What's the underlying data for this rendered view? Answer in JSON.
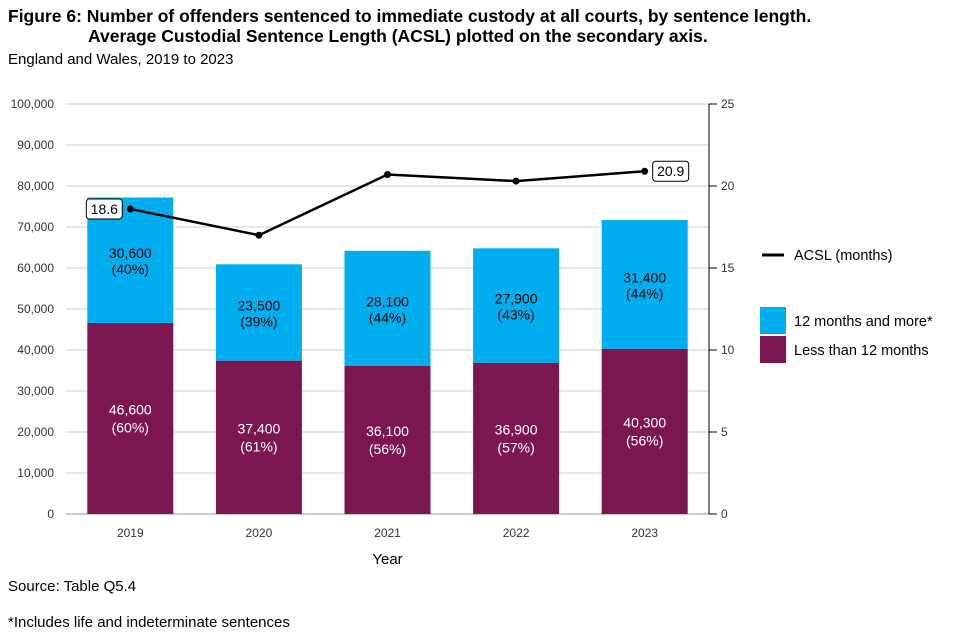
{
  "title_line1": "Figure 6: Number of offenders sentenced to immediate custody at all courts, by sentence length.",
  "title_line2": "Average Custodial Sentence Length (ACSL) plotted on the secondary axis.",
  "subtitle": "England and Wales, 2019 to 2023",
  "source": "Source: Table Q5.4",
  "footnote": "*Includes life and indeterminate sentences",
  "chart_data": {
    "type": "bar",
    "stacked": true,
    "categories": [
      "2019",
      "2020",
      "2021",
      "2022",
      "2023"
    ],
    "xlabel": "Year",
    "ylabel": "",
    "ylim": [
      0,
      100000
    ],
    "y_ticks": [
      "0",
      "10,000",
      "20,000",
      "30,000",
      "40,000",
      "50,000",
      "60,000",
      "70,000",
      "80,000",
      "90,000",
      "100,000"
    ],
    "y2lim": [
      0,
      25
    ],
    "y2_ticks": [
      "0",
      "5",
      "10",
      "15",
      "20",
      "25"
    ],
    "series": [
      {
        "name": "Less than 12 months",
        "color": "#7c1650",
        "values": [
          46600,
          37400,
          36100,
          36900,
          40300
        ],
        "labels": [
          "46,600",
          "37,400",
          "36,100",
          "36,900",
          "40,300"
        ],
        "pct_labels": [
          "(60%)",
          "(61%)",
          "(56%)",
          "(57%)",
          "(56%)"
        ]
      },
      {
        "name": "12 months and more*",
        "color": "#00aeef",
        "values": [
          30600,
          23500,
          28100,
          27900,
          31400
        ],
        "labels": [
          "30,600",
          "23,500",
          "28,100",
          "27,900",
          "31,400"
        ],
        "pct_labels": [
          "(40%)",
          "(39%)",
          "(44%)",
          "(43%)",
          "(44%)"
        ]
      }
    ],
    "line_series": {
      "name": "ACSL (months)",
      "axis": "secondary",
      "color": "#000000",
      "values": [
        18.6,
        17.0,
        20.7,
        20.3,
        20.9
      ],
      "callouts": [
        {
          "index": 0,
          "text": "18.6"
        },
        {
          "index": 4,
          "text": "20.9"
        }
      ]
    },
    "grid": true,
    "legend_position": "right"
  }
}
